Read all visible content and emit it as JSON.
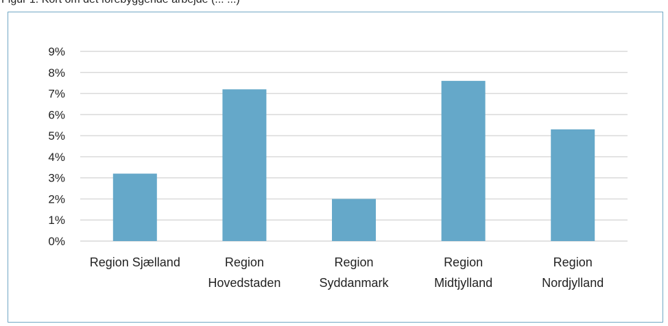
{
  "caption": "Figur 1. Kort om det forebyggende arbejde (... ...)",
  "chart_data": {
    "type": "bar",
    "title": "",
    "xlabel": "",
    "ylabel": "",
    "ylim": [
      0,
      9
    ],
    "y_ticks": [
      "0%",
      "1%",
      "2%",
      "3%",
      "4%",
      "5%",
      "6%",
      "7%",
      "8%",
      "9%"
    ],
    "grid": true,
    "legend": "none",
    "categories": [
      [
        "Region Sjælland"
      ],
      [
        "Region",
        "Hovedstaden"
      ],
      [
        "Region",
        "Syddanmark"
      ],
      [
        "Region",
        "Midtjylland"
      ],
      [
        "Region",
        "Nordjylland"
      ]
    ],
    "values": [
      3.2,
      7.2,
      2.0,
      7.6,
      5.3
    ],
    "bar_color": "#65a8c9",
    "grid_color": "#d9d9d9"
  }
}
